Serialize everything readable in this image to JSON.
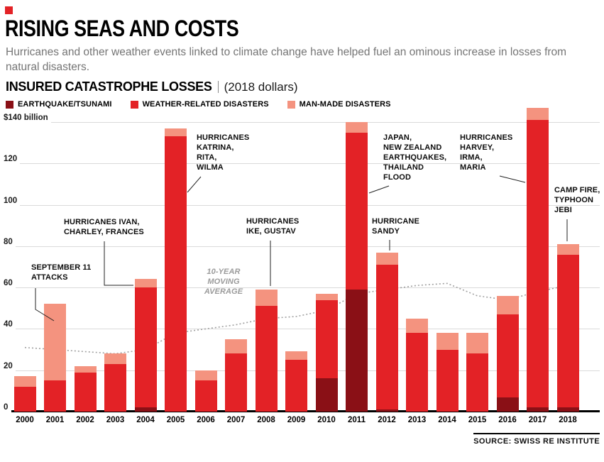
{
  "brand": {
    "accent_color": "#e32226"
  },
  "header": {
    "title": "RISING SEAS AND COSTS",
    "subtitle": "Hurricanes and other weather events linked to climate change have helped fuel an ominous increase in losses from\nnatural disasters.",
    "chart_label": "INSURED CATASTROPHE LOSSES",
    "chart_label_suffix": "(2018 dollars)"
  },
  "legend": [
    {
      "label": "EARTHQUAKE/TSUNAMI",
      "color": "#8a1016"
    },
    {
      "label": "WEATHER-RELATED DISASTERS",
      "color": "#e32226"
    },
    {
      "label": "MAN-MADE DISASTERS",
      "color": "#f4937f"
    }
  ],
  "chart_data": {
    "type": "bar",
    "stacked": true,
    "title": "INSURED CATASTROPHE LOSSES (2018 dollars)",
    "ylabel": "$ billion (2018 dollars)",
    "ylim": [
      0,
      150
    ],
    "categories": [
      "2000",
      "2001",
      "2002",
      "2003",
      "2004",
      "2005",
      "2006",
      "2007",
      "2008",
      "2009",
      "2010",
      "2011",
      "2012",
      "2013",
      "2014",
      "2015",
      "2016",
      "2017",
      "2018"
    ],
    "series": [
      {
        "name": "EARTHQUAKE/TSUNAMI",
        "color": "#8a1016",
        "values": [
          0,
          0,
          0,
          0,
          2,
          0,
          0,
          0,
          0,
          0,
          16,
          59,
          1,
          0,
          0,
          0,
          7,
          2,
          2
        ]
      },
      {
        "name": "WEATHER-RELATED DISASTERS",
        "color": "#e32226",
        "values": [
          12,
          15,
          19,
          23,
          58,
          133,
          15,
          28,
          51,
          25,
          38,
          76,
          70,
          38,
          30,
          28,
          40,
          139,
          74
        ]
      },
      {
        "name": "MAN-MADE DISASTERS",
        "color": "#f4937f",
        "values": [
          5,
          37,
          3,
          5,
          4,
          4,
          5,
          7,
          8,
          4,
          3,
          5,
          6,
          7,
          8,
          10,
          9,
          6,
          5
        ]
      }
    ],
    "moving_average": {
      "values": [
        31,
        30,
        29,
        28,
        30,
        38,
        40,
        42,
        45,
        46,
        49,
        57,
        59,
        61,
        62,
        56,
        54,
        58,
        61
      ]
    },
    "y_axis": {
      "top_label": "$140 billion",
      "ticks": [
        0,
        20,
        40,
        60,
        80,
        100,
        120
      ],
      "gridline_values": [
        20,
        40,
        60,
        80,
        100,
        120,
        140
      ],
      "max": 140
    },
    "legend_position": "top"
  },
  "annotations": [
    {
      "id": "september-11",
      "text": "SEPTEMBER 11\nATTACKS"
    },
    {
      "id": "ivan-charley-frances",
      "text": "HURRICANES IVAN,\nCHARLEY, FRANCES"
    },
    {
      "id": "katrina-rita-wilma",
      "text": "HURRICANES\nKATRINA,\nRITA,\nWILMA"
    },
    {
      "id": "ike-gustav",
      "text": "HURRICANES\nIKE, GUSTAV"
    },
    {
      "id": "moving-average-label",
      "text": "10-YEAR\nMOVING\nAVERAGE"
    },
    {
      "id": "japan-nz-thailand",
      "text": "JAPAN,\nNEW ZEALAND\nEARTHQUAKES,\nTHAILAND\nFLOOD"
    },
    {
      "id": "sandy",
      "text": "HURRICANE\nSANDY"
    },
    {
      "id": "harvey-irma-maria",
      "text": "HURRICANES\nHARVEY,\nIRMA,\nMARIA"
    },
    {
      "id": "camp-fire-jebi",
      "text": "CAMP FIRE,\nTYPHOON\nJEBI"
    }
  ],
  "footer": {
    "source": "SOURCE: SWISS RE INSTITUTE"
  }
}
